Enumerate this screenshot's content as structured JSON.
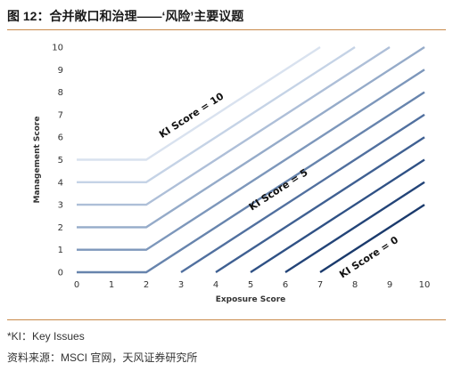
{
  "header": {
    "title": "图 12：合并敞口和治理——‘风险’主要议题"
  },
  "footer": {
    "note": "*KI：Key Issues",
    "source": "资料来源：MSCI 官网，天风证券研究所"
  },
  "chart_data": {
    "type": "line",
    "title": "",
    "xlabel": "Exposure Score",
    "ylabel": "Management Score",
    "xlim": [
      0,
      10
    ],
    "ylim": [
      0,
      10
    ],
    "xticks": [
      0,
      1,
      2,
      3,
      4,
      5,
      6,
      7,
      8,
      9,
      10
    ],
    "yticks": [
      0,
      1,
      2,
      3,
      4,
      5,
      6,
      7,
      8,
      9,
      10
    ],
    "grid": false,
    "series": [
      {
        "color": "#d9e2ef",
        "points": [
          [
            0,
            5
          ],
          [
            2,
            5
          ],
          [
            7,
            10
          ]
        ]
      },
      {
        "color": "#c5d3e6",
        "points": [
          [
            0,
            4
          ],
          [
            2,
            4
          ],
          [
            8,
            10
          ]
        ]
      },
      {
        "color": "#aebfd8",
        "points": [
          [
            0,
            3
          ],
          [
            2,
            3
          ],
          [
            9,
            10
          ]
        ]
      },
      {
        "color": "#95abc9",
        "points": [
          [
            0,
            2
          ],
          [
            2,
            2
          ],
          [
            10,
            10
          ]
        ]
      },
      {
        "color": "#7d97bb",
        "points": [
          [
            0,
            1
          ],
          [
            2,
            1
          ],
          [
            10,
            9
          ]
        ]
      },
      {
        "color": "#6784ad",
        "points": [
          [
            0,
            0
          ],
          [
            2,
            0
          ],
          [
            10,
            8
          ]
        ]
      },
      {
        "color": "#51709f",
        "points": [
          [
            3,
            0
          ],
          [
            10,
            7
          ]
        ]
      },
      {
        "color": "#3f6092",
        "points": [
          [
            4,
            0
          ],
          [
            10,
            6
          ]
        ]
      },
      {
        "color": "#2f5185",
        "points": [
          [
            5,
            0
          ],
          [
            10,
            5
          ]
        ]
      },
      {
        "color": "#234478",
        "points": [
          [
            6,
            0
          ],
          [
            10,
            4
          ]
        ]
      },
      {
        "color": "#1a3a6c",
        "points": [
          [
            7,
            0
          ],
          [
            10,
            3
          ]
        ]
      }
    ],
    "annotations": [
      {
        "text": "KI Score = 10",
        "x": 3.35,
        "y": 6.85
      },
      {
        "text": "KI Score = 5",
        "x": 5.85,
        "y": 3.55
      },
      {
        "text": "KI Score = 0",
        "x": 8.45,
        "y": 0.55
      }
    ]
  }
}
